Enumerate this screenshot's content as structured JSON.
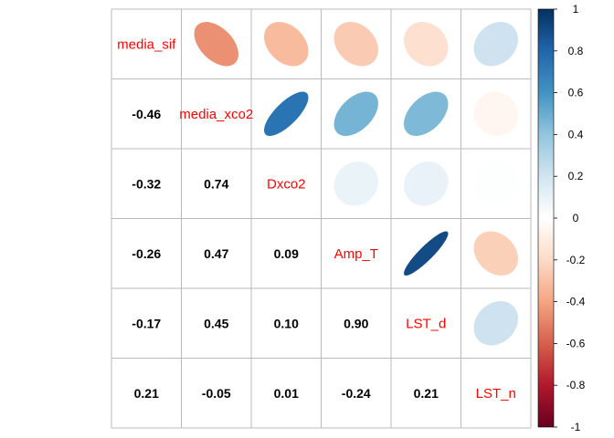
{
  "chart_data": {
    "type": "heatmap",
    "subtype": "correlation-matrix",
    "title": "",
    "lower_method": "number",
    "upper_method": "ellipse",
    "variables": [
      "media_sif",
      "media_xco2",
      "Dxco2",
      "Amp_T",
      "LST_d",
      "LST_n"
    ],
    "matrix": [
      [
        1.0,
        -0.46,
        -0.32,
        -0.26,
        -0.17,
        0.21
      ],
      [
        -0.46,
        1.0,
        0.74,
        0.47,
        0.45,
        -0.05
      ],
      [
        -0.32,
        0.74,
        1.0,
        0.09,
        0.1,
        0.01
      ],
      [
        -0.26,
        0.47,
        0.09,
        1.0,
        0.9,
        -0.24
      ],
      [
        -0.17,
        0.45,
        0.1,
        0.9,
        1.0,
        0.21
      ],
      [
        0.21,
        -0.05,
        0.01,
        -0.24,
        0.21,
        1.0
      ]
    ],
    "colorbar": {
      "range": [
        -1,
        1
      ],
      "ticks": [
        "1",
        "0.8",
        "0.6",
        "0.4",
        "0.2",
        "0",
        "-0.2",
        "-0.4",
        "-0.6",
        "-0.8",
        "-1"
      ]
    },
    "colors": {
      "diagonal_label": "#ff0000",
      "number_text": "#000000",
      "grid": "#bbbbbb",
      "palette": [
        "#67001f",
        "#b2182b",
        "#d6604d",
        "#f4a582",
        "#fddbc7",
        "#ffffff",
        "#d1e5f0",
        "#92c5de",
        "#4393c3",
        "#2166ac",
        "#053061"
      ]
    }
  }
}
